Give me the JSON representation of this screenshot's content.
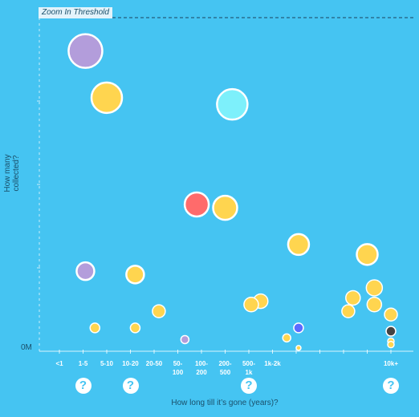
{
  "zoom_label": "Zoom In Threshold",
  "colors": {
    "background": "#45c4f2",
    "axis": "#ffffff",
    "dashed": "#2a6f8f",
    "bubble_stroke": "#ffffff"
  },
  "help_icon": "question-mark-icon",
  "help_glyph": "?",
  "chart_data": {
    "type": "scatter",
    "title": "",
    "xlabel": "How long till it’s gone (years)?",
    "ylabel": "How many collected?",
    "y_tick_labels": [
      "0M"
    ],
    "categories": [
      "<1",
      "1-5",
      "5-10",
      "10-20",
      "20-50",
      "50-\n100",
      "100-\n200",
      "200-\n500",
      "500-\n1k",
      "1k-2k",
      "",
      "",
      "",
      "",
      "10k+"
    ],
    "help_categories": [
      1,
      3,
      8,
      14
    ],
    "threshold_line": "Zoom In Threshold",
    "points": [
      {
        "x": 1.1,
        "y": 0.9,
        "r": 21,
        "color": "#b39ddb"
      },
      {
        "x": 2.0,
        "y": 0.76,
        "r": 19,
        "color": "#ffd54f"
      },
      {
        "x": 7.3,
        "y": 0.74,
        "r": 19,
        "color": "#7df0fb"
      },
      {
        "x": 5.8,
        "y": 0.44,
        "r": 15,
        "color": "#ff6b6b"
      },
      {
        "x": 7.0,
        "y": 0.43,
        "r": 15,
        "color": "#ffd54f"
      },
      {
        "x": 10.1,
        "y": 0.32,
        "r": 13,
        "color": "#ffd54f"
      },
      {
        "x": 13.0,
        "y": 0.29,
        "r": 13,
        "color": "#ffd54f"
      },
      {
        "x": 1.1,
        "y": 0.24,
        "r": 11,
        "color": "#b39ddb"
      },
      {
        "x": 3.2,
        "y": 0.23,
        "r": 11,
        "color": "#ffd54f"
      },
      {
        "x": 13.3,
        "y": 0.19,
        "r": 10,
        "color": "#ffd54f"
      },
      {
        "x": 12.4,
        "y": 0.16,
        "r": 9,
        "color": "#ffd54f"
      },
      {
        "x": 8.5,
        "y": 0.15,
        "r": 9,
        "color": "#ffd54f"
      },
      {
        "x": 8.1,
        "y": 0.14,
        "r": 9,
        "color": "#ffd54f"
      },
      {
        "x": 13.3,
        "y": 0.14,
        "r": 9,
        "color": "#ffd54f"
      },
      {
        "x": 4.2,
        "y": 0.12,
        "r": 8,
        "color": "#ffd54f"
      },
      {
        "x": 12.2,
        "y": 0.12,
        "r": 8,
        "color": "#ffd54f"
      },
      {
        "x": 14.0,
        "y": 0.11,
        "r": 8,
        "color": "#ffd54f"
      },
      {
        "x": 1.5,
        "y": 0.07,
        "r": 6,
        "color": "#ffd54f"
      },
      {
        "x": 3.2,
        "y": 0.07,
        "r": 6,
        "color": "#ffd54f"
      },
      {
        "x": 10.1,
        "y": 0.07,
        "r": 6,
        "color": "#5c6bff"
      },
      {
        "x": 14.0,
        "y": 0.06,
        "r": 6,
        "color": "#444444"
      },
      {
        "x": 9.6,
        "y": 0.04,
        "r": 5,
        "color": "#ffd54f"
      },
      {
        "x": 5.3,
        "y": 0.035,
        "r": 5,
        "color": "#b39ddb"
      },
      {
        "x": 14.0,
        "y": 0.03,
        "r": 4,
        "color": "#ffd54f"
      },
      {
        "x": 14.0,
        "y": 0.02,
        "r": 4,
        "color": "#ffd54f"
      },
      {
        "x": 10.1,
        "y": 0.01,
        "r": 3,
        "color": "#ffd54f"
      }
    ],
    "ylim": [
      0,
      1
    ],
    "grid": false,
    "legend": "none"
  }
}
